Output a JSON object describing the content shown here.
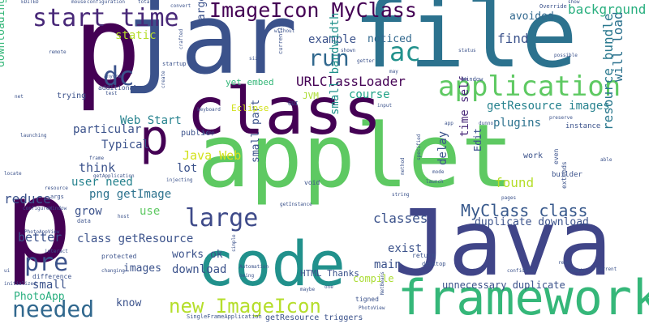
{
  "words": [
    {
      "text": "applet",
      "color": "#5ec962"
    },
    {
      "text": "jar",
      "color": "#3b528b"
    },
    {
      "text": "file",
      "color": "#2c728e"
    },
    {
      "text": "class",
      "color": "#440154"
    },
    {
      "text": "Java",
      "color": "#404588"
    },
    {
      "text": "code",
      "color": "#21918c"
    },
    {
      "text": "framework",
      "color": "#35b779"
    },
    {
      "text": "load",
      "color": "#3b528b"
    },
    {
      "text": "p",
      "color": "#440154"
    },
    {
      "text": "start time",
      "color": "#482878"
    },
    {
      "text": "application",
      "color": "#5ec962"
    },
    {
      "text": "ImageIcon MyClass",
      "color": "#440154"
    },
    {
      "text": "run",
      "color": "#31688e"
    },
    {
      "text": "ac",
      "color": "#21918c"
    },
    {
      "text": "dc",
      "color": "#3b528b"
    },
    {
      "text": "static",
      "color": "#b5de2b"
    },
    {
      "text": "large",
      "color": "#3e4a89"
    },
    {
      "text": "pre",
      "color": "#3b528b"
    },
    {
      "text": "needed",
      "color": "#31688e"
    },
    {
      "text": "new ImageIcon",
      "color": "#b5de2b"
    },
    {
      "text": "MyClass class",
      "color": "#38598c"
    },
    {
      "text": "getResource images",
      "color": "#26828e"
    },
    {
      "text": "URLClassLoader",
      "color": "#440154"
    },
    {
      "text": "resource bundle",
      "color": "#2a788e"
    },
    {
      "text": "will load",
      "color": "#2c728e"
    },
    {
      "text": "background",
      "color": "#29af7f"
    },
    {
      "text": "example",
      "color": "#3b528b"
    },
    {
      "text": "noticed",
      "color": "#31688e"
    },
    {
      "text": "find",
      "color": "#3b528b"
    },
    {
      "text": "avoided",
      "color": "#31688e"
    },
    {
      "text": "course",
      "color": "#20a386"
    },
    {
      "text": "exist",
      "color": "#3b528b"
    },
    {
      "text": "plugins",
      "color": "#2c728e"
    },
    {
      "text": "time self",
      "color": "#482878"
    },
    {
      "text": "Edit",
      "color": "#3b528b"
    },
    {
      "text": "delay",
      "color": "#3b528b"
    },
    {
      "text": "found",
      "color": "#b5de2b"
    },
    {
      "text": "Java Web",
      "color": "#d2e21b"
    },
    {
      "text": "Web Start",
      "color": "#26828e"
    },
    {
      "text": "Typical",
      "color": "#3b528b"
    },
    {
      "text": "think",
      "color": "#3b528b"
    },
    {
      "text": "lot",
      "color": "#3b528b"
    },
    {
      "text": "png getImage",
      "color": "#2c728e"
    },
    {
      "text": "user need",
      "color": "#26828e"
    },
    {
      "text": "use",
      "color": "#5ec962"
    },
    {
      "text": "grow",
      "color": "#3b528b"
    },
    {
      "text": "reduce",
      "color": "#3b528b"
    },
    {
      "text": "better",
      "color": "#3b528b"
    },
    {
      "text": "class getResource",
      "color": "#3b528b"
    },
    {
      "text": "works ok",
      "color": "#3b528b"
    },
    {
      "text": "download",
      "color": "#3b528b"
    },
    {
      "text": "images",
      "color": "#3b528b"
    },
    {
      "text": "classes",
      "color": "#3b528b"
    },
    {
      "text": "duplicate download",
      "color": "#3b528b"
    },
    {
      "text": "unnecessary duplicate",
      "color": "#3b528b"
    },
    {
      "text": "main",
      "color": "#3b528b"
    },
    {
      "text": "small",
      "color": "#3b528b"
    },
    {
      "text": "PhotoApp",
      "color": "#29af7f"
    },
    {
      "text": "know",
      "color": "#3b528b"
    },
    {
      "text": "particular",
      "color": "#3b528b"
    },
    {
      "text": "small part",
      "color": "#3b528b"
    },
    {
      "text": "small bandwidth",
      "color": "#21918c"
    },
    {
      "text": "large size",
      "color": "#3b528b"
    },
    {
      "text": "yet embed",
      "color": "#35b779"
    },
    {
      "text": "downloading",
      "color": "#35b779"
    },
    {
      "text": "trying",
      "color": "#3b528b"
    },
    {
      "text": "HTML Thanks",
      "color": "#3b528b"
    },
    {
      "text": "compile",
      "color": "#aadc32"
    },
    {
      "text": "Eclipse",
      "color": "#d2e21b"
    },
    {
      "text": "JVM",
      "color": "#aadc32"
    },
    {
      "text": "public",
      "color": "#3b528b"
    },
    {
      "text": "additional",
      "color": "#3b528b"
    },
    {
      "text": "getResource triggers",
      "color": "#3b528b"
    },
    {
      "text": "SingleFrameApplication",
      "color": "#3b528b"
    },
    {
      "text": "GUI",
      "color": "#3b528b"
    },
    {
      "text": "difference",
      "color": "#3b528b"
    },
    {
      "text": "work",
      "color": "#3b528b"
    },
    {
      "text": "instance",
      "color": "#3b528b"
    },
    {
      "text": "builder",
      "color": "#3b528b"
    },
    {
      "text": "extends",
      "color": "#3b528b"
    },
    {
      "text": "even",
      "color": "#3b528b"
    },
    {
      "text": "protected",
      "color": "#3b528b"
    },
    {
      "text": "return",
      "color": "#3b528b"
    },
    {
      "text": "desktop",
      "color": "#3b528b"
    },
    {
      "text": "tigned",
      "color": "#3b528b"
    },
    {
      "text": "PhotoView",
      "color": "#3b528b"
    },
    {
      "text": "data",
      "color": "#3b528b"
    },
    {
      "text": "host",
      "color": "#3b528b"
    },
    {
      "text": "interact",
      "color": "#3b528b"
    },
    {
      "text": "changing",
      "color": "#3b528b"
    },
    {
      "text": "initialized",
      "color": "#3b528b"
    },
    {
      "text": "configureWindow",
      "color": "#3b528b"
    },
    {
      "text": "resource",
      "color": "#3b528b"
    },
    {
      "text": "args",
      "color": "#3b528b"
    },
    {
      "text": "void",
      "color": "#3b528b"
    },
    {
      "text": "locate",
      "color": "#3b528b"
    },
    {
      "text": "launching",
      "color": "#3b528b"
    },
    {
      "text": "injecting",
      "color": "#3b528b"
    },
    {
      "text": "getApplication",
      "color": "#3b528b"
    },
    {
      "text": "Window",
      "color": "#3b528b"
    },
    {
      "text": "startup",
      "color": "#3b528b"
    },
    {
      "text": "Override",
      "color": "#3b528b"
    },
    {
      "text": "show",
      "color": "#3b528b"
    },
    {
      "text": "status",
      "color": "#3b528b"
    },
    {
      "text": "possible",
      "color": "#3b528b"
    },
    {
      "text": "currently",
      "color": "#3b528b"
    },
    {
      "text": "configuration",
      "color": "#3b528b"
    },
    {
      "text": "EDITED",
      "color": "#3b528b"
    },
    {
      "text": "mouse",
      "color": "#3b528b"
    },
    {
      "text": "total",
      "color": "#3b528b"
    },
    {
      "text": "convert",
      "color": "#3b528b"
    },
    {
      "text": "without",
      "color": "#3b528b"
    },
    {
      "text": "shown",
      "color": "#3b528b"
    },
    {
      "text": "input",
      "color": "#3b528b"
    },
    {
      "text": "getter",
      "color": "#3b528b"
    },
    {
      "text": "preserve",
      "color": "#3b528b"
    },
    {
      "text": "able",
      "color": "#3b528b"
    },
    {
      "text": "pages",
      "color": "#3b528b"
    },
    {
      "text": "launch",
      "color": "#3b528b"
    },
    {
      "text": "string",
      "color": "#3b528b"
    },
    {
      "text": "domain",
      "color": "#3b528b"
    },
    {
      "text": "confidence",
      "color": "#3b528b"
    },
    {
      "text": "read",
      "color": "#3b528b"
    },
    {
      "text": "current",
      "color": "#3b528b"
    },
    {
      "text": "keyboard",
      "color": "#3b528b"
    },
    {
      "text": "frame",
      "color": "#3b528b"
    },
    {
      "text": "create",
      "color": "#3b528b"
    },
    {
      "text": "ui",
      "color": "#3b528b"
    },
    {
      "text": "NetBeans",
      "color": "#3b528b"
    },
    {
      "text": "maybe",
      "color": "#3b528b"
    },
    {
      "text": "PhotoAppView",
      "color": "#3b528b"
    },
    {
      "text": "getInstance",
      "color": "#3b528b"
    },
    {
      "text": "may",
      "color": "#3b528b"
    },
    {
      "text": "dunno",
      "color": "#3b528b"
    },
    {
      "text": "remote",
      "color": "#3b528b"
    },
    {
      "text": "specified",
      "color": "#3b528b"
    },
    {
      "text": "anyone",
      "color": "#3b528b"
    },
    {
      "text": "Automation",
      "color": "#3b528b"
    },
    {
      "text": "being",
      "color": "#3b528b"
    },
    {
      "text": "method",
      "color": "#3b528b"
    },
    {
      "text": "net",
      "color": "#3b528b"
    },
    {
      "text": "app",
      "color": "#3b528b"
    },
    {
      "text": "test",
      "color": "#3b528b"
    },
    {
      "text": "size",
      "color": "#3b528b"
    },
    {
      "text": "simple",
      "color": "#3b528b"
    },
    {
      "text": "crafted",
      "color": "#3b528b"
    },
    {
      "text": "mode",
      "color": "#3b528b"
    },
    {
      "text": "keep",
      "color": "#3b528b"
    },
    {
      "text": "one",
      "color": "#3b528b"
    }
  ]
}
